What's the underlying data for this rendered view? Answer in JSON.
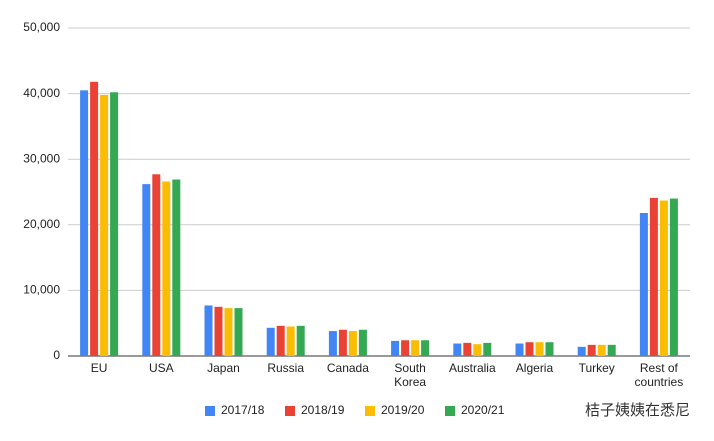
{
  "chart_data": {
    "type": "bar",
    "categories": [
      "EU",
      "USA",
      "Japan",
      "Russia",
      "Canada",
      "South Korea",
      "Australia",
      "Algeria",
      "Turkey",
      "Rest of countries"
    ],
    "series": [
      {
        "name": "2017/18",
        "color": "#4285f4",
        "values": [
          40500,
          26200,
          7700,
          4300,
          3800,
          2300,
          1900,
          1900,
          1400,
          21800
        ]
      },
      {
        "name": "2018/19",
        "color": "#ea4335",
        "values": [
          41800,
          27700,
          7500,
          4600,
          4000,
          2400,
          2000,
          2100,
          1700,
          24100
        ]
      },
      {
        "name": "2019/20",
        "color": "#fbbc04",
        "values": [
          39800,
          26600,
          7300,
          4500,
          3800,
          2400,
          1800,
          2100,
          1700,
          23700
        ]
      },
      {
        "name": "2020/21",
        "color": "#34a853",
        "values": [
          40200,
          26900,
          7300,
          4600,
          4000,
          2400,
          2000,
          2100,
          1700,
          24000
        ]
      }
    ],
    "ylim": [
      0,
      50000
    ],
    "yticks": [
      0,
      {
        "value": 10000,
        "label": "10,000"
      },
      {
        "value": 20000,
        "label": "20,000"
      },
      {
        "value": 30000,
        "label": "30,000"
      },
      {
        "value": 40000,
        "label": "40,000"
      },
      {
        "value": 50000,
        "label": "50,000"
      }
    ],
    "grid": true,
    "legend": "bottom",
    "watermark": "桔子姨姨在悉尼"
  }
}
